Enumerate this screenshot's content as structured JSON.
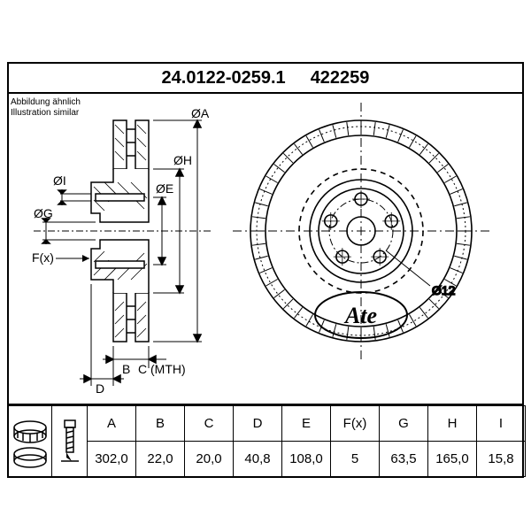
{
  "header": {
    "part_number_1": "24.0122-0259.1",
    "part_number_2": "422259"
  },
  "subtitle": {
    "line1": "Abbildung ähnlich",
    "line2": "Illustration similar"
  },
  "diagram": {
    "side_labels": {
      "I": "ØI",
      "G": "ØG",
      "F": "F(x)",
      "E": "ØE",
      "H": "ØH",
      "A": "ØA",
      "B": "B",
      "D": "D",
      "C": "C (MTH)"
    },
    "front_label": "Ø12",
    "logo": "Ate",
    "colors": {
      "stroke": "#000000",
      "background": "#ffffff",
      "line_width_main": 2,
      "line_width_thin": 1
    }
  },
  "table": {
    "columns": [
      "A",
      "B",
      "C",
      "D",
      "E",
      "F(x)",
      "G",
      "H",
      "I"
    ],
    "values": [
      "302,0",
      "22,0",
      "20,0",
      "40,8",
      "108,0",
      "5",
      "63,5",
      "165,0",
      "15,8"
    ]
  }
}
